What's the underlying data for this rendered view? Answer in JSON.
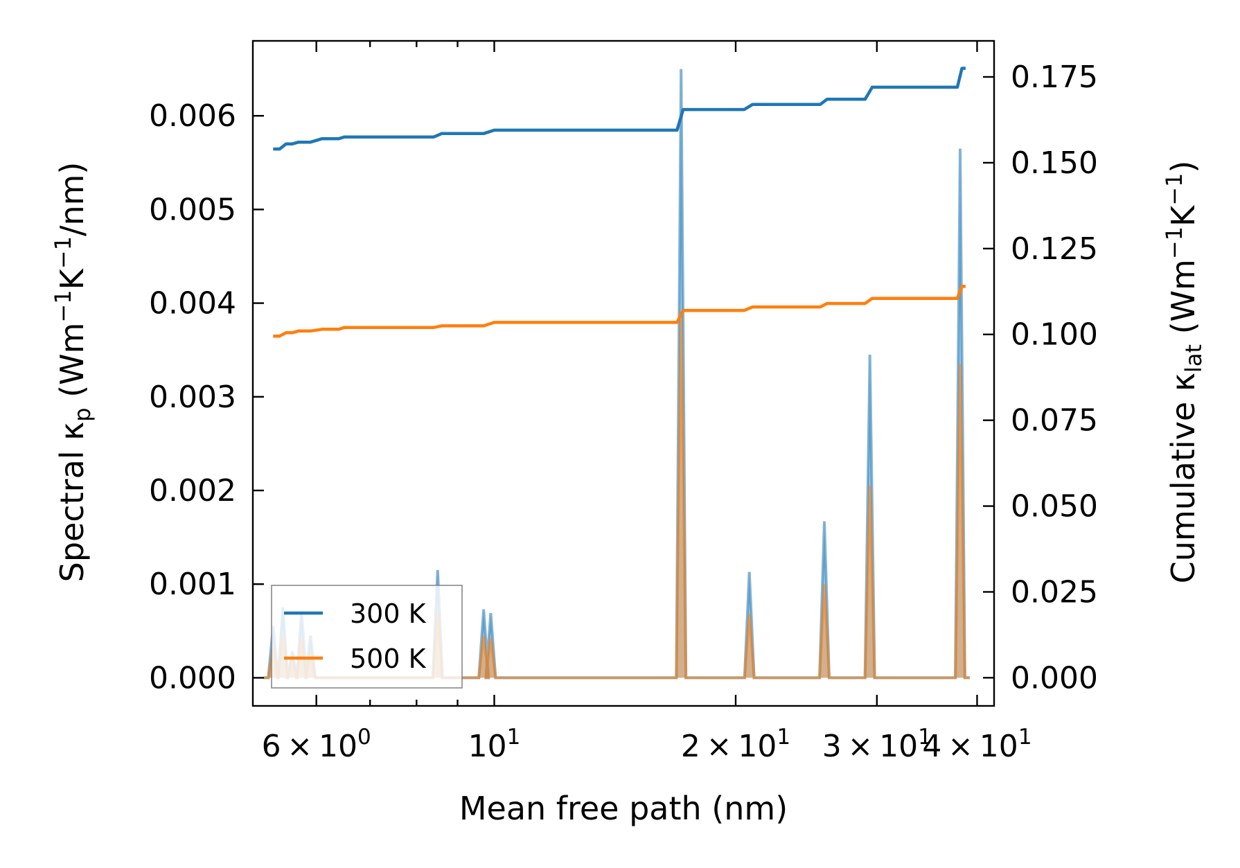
{
  "chart_data": {
    "type": "line",
    "xscale": "log",
    "xlabel": "Mean free path (nm)",
    "ylabel_left": {
      "main": "Spectral κ",
      "sub": "p",
      "unit_pre": " (Wm",
      "sup1": "−1",
      "mid": "K",
      "sup2": "−1",
      "unit_post": "/nm)"
    },
    "ylabel_right": {
      "main": "Cumulative κ",
      "sub": "lat",
      "unit_pre": " (Wm",
      "sup1": "−1",
      "mid": "K",
      "sup2": "−1",
      "unit_post": ")"
    },
    "xlim": [
      5.0,
      42.0
    ],
    "ylim_left": [
      -0.0003,
      0.0068
    ],
    "ylim_right": [
      -0.0082,
      0.1855
    ],
    "x_major_ticks": [
      {
        "value": 6,
        "mant": "6",
        "base": "10",
        "exp": "0"
      },
      {
        "value": 10,
        "mant": "",
        "base": "10",
        "exp": "1"
      },
      {
        "value": 20,
        "mant": "2",
        "base": "10",
        "exp": "1"
      },
      {
        "value": 30,
        "mant": "3",
        "base": "10",
        "exp": "1"
      },
      {
        "value": 40,
        "mant": "4",
        "base": "10",
        "exp": "1"
      }
    ],
    "x_minor_ticks": [
      7,
      8,
      9
    ],
    "y_left_ticks": [
      {
        "value": 0.0,
        "label": "0.000"
      },
      {
        "value": 0.001,
        "label": "0.001"
      },
      {
        "value": 0.002,
        "label": "0.002"
      },
      {
        "value": 0.003,
        "label": "0.003"
      },
      {
        "value": 0.004,
        "label": "0.004"
      },
      {
        "value": 0.005,
        "label": "0.005"
      },
      {
        "value": 0.006,
        "label": "0.006"
      }
    ],
    "y_right_ticks": [
      {
        "value": 0.0,
        "label": "0.000"
      },
      {
        "value": 0.025,
        "label": "0.025"
      },
      {
        "value": 0.05,
        "label": "0.050"
      },
      {
        "value": 0.075,
        "label": "0.075"
      },
      {
        "value": 0.1,
        "label": "0.100"
      },
      {
        "value": 0.125,
        "label": "0.125"
      },
      {
        "value": 0.15,
        "label": "0.150"
      },
      {
        "value": 0.175,
        "label": "0.175"
      }
    ],
    "legend": {
      "position": "lower-left",
      "entries": [
        "300 K",
        "500 K"
      ]
    },
    "series": [
      {
        "name": "300 K",
        "color": "#1f77b4",
        "spectral": [
          [
            5.3,
            0.00055
          ],
          [
            5.45,
            0.00075
          ],
          [
            5.6,
            0.00028
          ],
          [
            5.75,
            0.0007
          ],
          [
            5.9,
            0.00045
          ],
          [
            8.5,
            0.00115
          ],
          [
            9.7,
            0.00073
          ],
          [
            9.9,
            0.00069
          ],
          [
            17.1,
            0.0065
          ],
          [
            20.8,
            0.00113
          ],
          [
            25.8,
            0.00167
          ],
          [
            29.4,
            0.00345
          ],
          [
            38.1,
            0.00565
          ]
        ],
        "cumulative": [
          [
            5.3,
            0.154
          ],
          [
            5.4,
            0.154
          ],
          [
            5.5,
            0.1555
          ],
          [
            5.6,
            0.1555
          ],
          [
            5.7,
            0.156
          ],
          [
            5.9,
            0.156
          ],
          [
            6.1,
            0.157
          ],
          [
            6.4,
            0.157
          ],
          [
            6.5,
            0.1575
          ],
          [
            8.4,
            0.1575
          ],
          [
            8.6,
            0.1585
          ],
          [
            9.7,
            0.1585
          ],
          [
            10.0,
            0.1595
          ],
          [
            16.9,
            0.1595
          ],
          [
            17.2,
            0.1655
          ],
          [
            20.5,
            0.1655
          ],
          [
            21.0,
            0.167
          ],
          [
            25.5,
            0.167
          ],
          [
            26.0,
            0.1685
          ],
          [
            29.0,
            0.1685
          ],
          [
            29.6,
            0.172
          ],
          [
            37.8,
            0.172
          ],
          [
            38.3,
            0.1775
          ],
          [
            38.7,
            0.1775
          ]
        ]
      },
      {
        "name": "500 K",
        "color": "#ff7f0e",
        "spectral": [
          [
            5.3,
            0.00033
          ],
          [
            5.45,
            0.00045
          ],
          [
            5.6,
            0.00017
          ],
          [
            5.75,
            0.00042
          ],
          [
            5.9,
            0.00027
          ],
          [
            8.5,
            0.0007
          ],
          [
            9.7,
            0.00045
          ],
          [
            9.9,
            0.00042
          ],
          [
            17.1,
            0.0039
          ],
          [
            20.8,
            0.00068
          ],
          [
            25.8,
            0.001
          ],
          [
            29.4,
            0.00205
          ],
          [
            38.1,
            0.00335
          ]
        ],
        "cumulative": [
          [
            5.3,
            0.0995
          ],
          [
            5.4,
            0.0995
          ],
          [
            5.5,
            0.1005
          ],
          [
            5.6,
            0.1005
          ],
          [
            5.7,
            0.101
          ],
          [
            5.9,
            0.101
          ],
          [
            6.1,
            0.1015
          ],
          [
            6.4,
            0.1015
          ],
          [
            6.5,
            0.102
          ],
          [
            8.4,
            0.102
          ],
          [
            8.6,
            0.1025
          ],
          [
            9.7,
            0.1025
          ],
          [
            10.0,
            0.1035
          ],
          [
            16.9,
            0.1035
          ],
          [
            17.2,
            0.107
          ],
          [
            20.5,
            0.107
          ],
          [
            21.0,
            0.108
          ],
          [
            25.5,
            0.108
          ],
          [
            26.0,
            0.109
          ],
          [
            29.0,
            0.109
          ],
          [
            29.6,
            0.1105
          ],
          [
            37.8,
            0.1105
          ],
          [
            38.3,
            0.114
          ],
          [
            38.7,
            0.114
          ]
        ]
      }
    ]
  }
}
